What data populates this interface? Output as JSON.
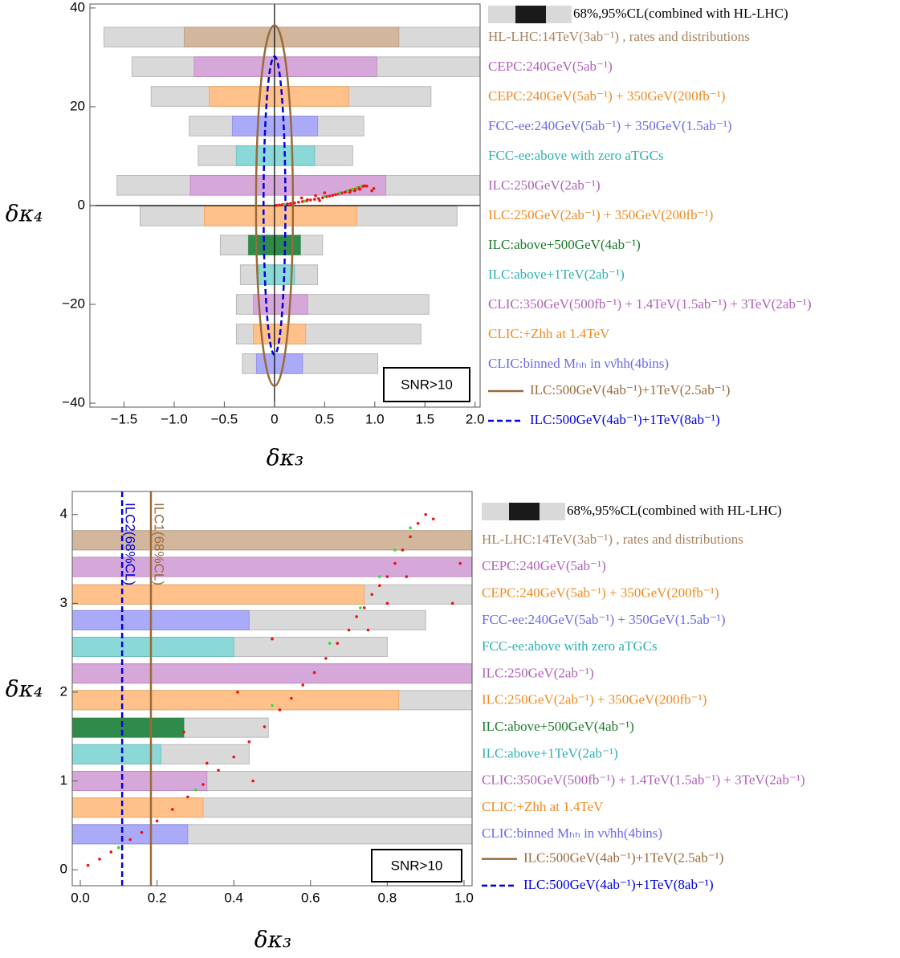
{
  "chart_data": [
    {
      "type": "interval",
      "xlabel": "δκ₃",
      "ylabel": "δκ₄",
      "annotation": "SNR>10",
      "zero_lines": true,
      "xlim": [
        -1.84,
        2.05
      ],
      "ylim": [
        -40.8,
        40.8
      ],
      "xticks": [
        {
          "value": -1.5,
          "label": "−1.5"
        },
        {
          "value": -1.0,
          "label": "−1.0"
        },
        {
          "value": -0.5,
          "label": "−0.5"
        },
        0,
        0.5,
        {
          "value": 1.0,
          "label": "1.0"
        },
        1.5,
        {
          "value": 2.0,
          "label": "2.0"
        }
      ],
      "yticks": [
        {
          "value": -40,
          "label": "−40"
        },
        {
          "value": -20,
          "label": "−20"
        },
        0,
        20,
        40
      ],
      "legend_title": "68%,95%CL(combined with HL-LHC)",
      "series": [
        {
          "name": "HL-LHC:14TeV(3ab⁻¹) , rates and distributions",
          "color": "#a8825f",
          "fill": "#d2b79c",
          "y": 34.1,
          "ci95": [
            -1.7,
            2.2
          ],
          "ci68": [
            -0.9,
            1.24
          ]
        },
        {
          "name": "CEPC:240GeV(5ab⁻¹)",
          "color": "#b060b8",
          "fill": "#d6a8da",
          "y": 28.1,
          "ci95": [
            -1.42,
            2.2
          ],
          "ci68": [
            -0.8,
            1.02
          ]
        },
        {
          "name": "CEPC:240GeV(5ab⁻¹) + 350GeV(200fb⁻¹)",
          "color": "#f08a20",
          "fill": "#ffc08a",
          "y": 22.1,
          "ci95": [
            -1.23,
            1.56
          ],
          "ci68": [
            -0.65,
            0.74
          ]
        },
        {
          "name": "FCC-ee:240GeV(5ab⁻¹) + 350GeV(1.5ab⁻¹)",
          "color": "#6a6ae8",
          "fill": "#aaaaf8",
          "y": 16.1,
          "ci95": [
            -0.85,
            0.89
          ],
          "ci68": [
            -0.42,
            0.43
          ]
        },
        {
          "name": "FCC-ee:above with zero aTGCs",
          "color": "#30b0b0",
          "fill": "#8ad8d8",
          "y": 10.1,
          "ci95": [
            -0.76,
            0.78
          ],
          "ci68": [
            -0.38,
            0.4
          ]
        },
        {
          "name": "ILC:250GeV(2ab⁻¹)",
          "color": "#b060b8",
          "fill": "#d6a8da",
          "y": 4.1,
          "ci95": [
            -1.57,
            2.2
          ],
          "ci68": [
            -0.84,
            1.11
          ]
        },
        {
          "name": "ILC:250GeV(2ab⁻¹) + 350GeV(200fb⁻¹)",
          "color": "#f08a20",
          "fill": "#ffc08a",
          "y": -2.1,
          "ci95": [
            -1.34,
            1.82
          ],
          "ci68": [
            -0.7,
            0.82
          ]
        },
        {
          "name": "ILC:above+500GeV(4ab⁻¹)",
          "color": "#1a7a2a",
          "fill": "#2e8b4a",
          "y": -8.0,
          "ci95": [
            -0.54,
            0.48
          ],
          "ci68": [
            -0.26,
            0.26
          ]
        },
        {
          "name": "ILC:above+1TeV(2ab⁻¹)",
          "color": "#30b0b0",
          "fill": "#8ad8d8",
          "y": -14.0,
          "ci95": [
            -0.34,
            0.43
          ],
          "ci68": [
            -0.16,
            0.2
          ]
        },
        {
          "name": "CLIC:350GeV(500fb⁻¹) + 1.4TeV(1.5ab⁻¹) + 3TeV(2ab⁻¹)",
          "color": "#b060b8",
          "fill": "#d6a8da",
          "y": -20.0,
          "ci95": [
            -0.38,
            1.54
          ],
          "ci68": [
            -0.21,
            0.33
          ]
        },
        {
          "name": "CLIC:+Zhh at 1.4TeV",
          "color": "#f08a20",
          "fill": "#ffc08a",
          "y": -26.0,
          "ci95": [
            -0.38,
            1.46
          ],
          "ci68": [
            -0.21,
            0.31
          ]
        },
        {
          "name": "CLIC:binned Mₕₕ in νν̄hh(4bins)",
          "color": "#6a6ae8",
          "fill": "#aaaaf8",
          "y": -32.0,
          "ci95": [
            -0.32,
            1.03
          ],
          "ci68": [
            -0.18,
            0.28
          ]
        }
      ],
      "lines": [
        {
          "name": "ILC:500GeV(4ab⁻¹)+1TeV(2.5ab⁻¹)",
          "color": "#9a6a3a",
          "dashed": false,
          "rx": 0.184,
          "ry": 36.5
        },
        {
          "name": "ILC:500GeV(4ab⁻¹)+1TeV(8ab⁻¹)",
          "color": "#0000e0",
          "dashed": true,
          "rx": 0.109,
          "ry": 30.2
        }
      ],
      "scatter": [
        {
          "color": "#ee1111",
          "x": [
            0.02,
            0.05,
            0.08,
            0.1,
            0.13,
            0.16,
            0.2,
            0.24,
            0.28,
            0.32,
            0.36,
            0.4,
            0.44,
            0.48,
            0.52,
            0.55,
            0.58,
            0.61,
            0.64,
            0.67,
            0.7,
            0.72,
            0.74,
            0.76,
            0.78,
            0.8,
            0.82,
            0.84,
            0.86,
            0.88,
            0.9,
            0.85,
            0.8,
            0.75,
            0.92,
            0.45,
            0.27,
            0.33,
            0.41,
            0.5,
            0.99,
            0.97
          ],
          "y": [
            0.05,
            0.12,
            0.2,
            0.25,
            0.34,
            0.42,
            0.55,
            0.68,
            0.82,
            0.96,
            1.12,
            1.27,
            1.44,
            1.61,
            1.8,
            1.93,
            2.08,
            2.22,
            2.38,
            2.55,
            2.7,
            2.85,
            2.95,
            3.1,
            3.2,
            3.3,
            3.45,
            3.6,
            3.75,
            3.9,
            4.0,
            3.3,
            3.0,
            2.7,
            3.95,
            1.0,
            1.55,
            1.2,
            2.0,
            2.6,
            3.45,
            3.0
          ]
        },
        {
          "color": "#33dd33",
          "x": [
            0.1,
            0.3,
            0.5,
            0.65,
            0.73,
            0.78,
            0.82,
            0.86
          ],
          "y": [
            0.25,
            0.9,
            1.85,
            2.55,
            2.95,
            3.3,
            3.6,
            3.85
          ]
        }
      ]
    },
    {
      "type": "interval",
      "xlabel": "δκ₃",
      "ylabel": "δκ₄",
      "annotation": "SNR>10",
      "zero_lines": false,
      "xlim": [
        -0.021,
        1.021
      ],
      "ylim": [
        -0.18,
        4.26
      ],
      "xticks": [
        {
          "value": 0,
          "label": "0.0"
        },
        0.2,
        0.4,
        0.6,
        0.8,
        {
          "value": 1.0,
          "label": "1.0"
        }
      ],
      "yticks": [
        0,
        1,
        2,
        3,
        4
      ],
      "legend_title": "68%,95%CL(combined with HL-LHC)",
      "series": [
        {
          "name": "HL-LHC:14TeV(3ab⁻¹) , rates and distributions",
          "color": "#a8825f",
          "fill": "#d2b79c",
          "y": 3.71,
          "ci95": [
            -1.7,
            2.2
          ],
          "ci68": [
            -0.9,
            1.24
          ]
        },
        {
          "name": "CEPC:240GeV(5ab⁻¹)",
          "color": "#b060b8",
          "fill": "#d6a8da",
          "y": 3.41,
          "ci95": [
            -1.42,
            2.2
          ],
          "ci68": [
            -0.8,
            1.02
          ]
        },
        {
          "name": "CEPC:240GeV(5ab⁻¹) + 350GeV(200fb⁻¹)",
          "color": "#f08a20",
          "fill": "#ffc08a",
          "y": 3.1,
          "ci95": [
            -1.23,
            1.56
          ],
          "ci68": [
            -0.65,
            0.74
          ]
        },
        {
          "name": "FCC-ee:240GeV(5ab⁻¹) + 350GeV(1.5ab⁻¹)",
          "color": "#6a6ae8",
          "fill": "#aaaaf8",
          "y": 2.81,
          "ci95": [
            -0.85,
            0.9
          ],
          "ci68": [
            -0.42,
            0.44
          ]
        },
        {
          "name": "FCC-ee:above with zero aTGCs",
          "color": "#30b0b0",
          "fill": "#8ad8d8",
          "y": 2.51,
          "ci95": [
            -0.76,
            0.8
          ],
          "ci68": [
            -0.38,
            0.4
          ]
        },
        {
          "name": "ILC:250GeV(2ab⁻¹)",
          "color": "#b060b8",
          "fill": "#d6a8da",
          "y": 2.21,
          "ci95": [
            -1.57,
            2.2
          ],
          "ci68": [
            -0.84,
            1.11
          ]
        },
        {
          "name": "ILC:250GeV(2ab⁻¹) + 350GeV(200fb⁻¹)",
          "color": "#f08a20",
          "fill": "#ffc08a",
          "y": 1.91,
          "ci95": [
            -1.34,
            1.82
          ],
          "ci68": [
            -0.7,
            0.83
          ]
        },
        {
          "name": "ILC:above+500GeV(4ab⁻¹)",
          "color": "#1a7a2a",
          "fill": "#2e8b4a",
          "y": 1.6,
          "ci95": [
            -0.54,
            0.49
          ],
          "ci68": [
            -0.26,
            0.27
          ]
        },
        {
          "name": "ILC:above+1TeV(2ab⁻¹)",
          "color": "#30b0b0",
          "fill": "#8ad8d8",
          "y": 1.3,
          "ci95": [
            -0.34,
            0.44
          ],
          "ci68": [
            -0.16,
            0.21
          ]
        },
        {
          "name": "CLIC:350GeV(500fb⁻¹) + 1.4TeV(1.5ab⁻¹) + 3TeV(2ab⁻¹)",
          "color": "#b060b8",
          "fill": "#d6a8da",
          "y": 1.0,
          "ci95": [
            -0.38,
            1.54
          ],
          "ci68": [
            -0.21,
            0.33
          ]
        },
        {
          "name": "CLIC:+Zhh at 1.4TeV",
          "color": "#f08a20",
          "fill": "#ffc08a",
          "y": 0.7,
          "ci95": [
            -0.38,
            1.46
          ],
          "ci68": [
            -0.21,
            0.32
          ]
        },
        {
          "name": "CLIC:binned Mₕₕ in νν̄hh(4bins)",
          "color": "#6a6ae8",
          "fill": "#aaaaf8",
          "y": 0.4,
          "ci95": [
            -0.32,
            1.03
          ],
          "ci68": [
            -0.18,
            0.28
          ]
        }
      ],
      "lines": [
        {
          "name": "ILC:500GeV(4ab⁻¹)+1TeV(2.5ab⁻¹)",
          "label": "ILC1(68%CL)",
          "color": "#9a6a3a",
          "dashed": false,
          "x": 0.184
        },
        {
          "name": "ILC:500GeV(4ab⁻¹)+1TeV(8ab⁻¹)",
          "label": "ILC2(68%CL)",
          "color": "#0000e0",
          "dashed": true,
          "x": 0.109
        }
      ],
      "scatter": [
        {
          "color": "#ee1111",
          "x": [
            0.02,
            0.05,
            0.08,
            0.1,
            0.13,
            0.16,
            0.2,
            0.24,
            0.28,
            0.32,
            0.36,
            0.4,
            0.44,
            0.48,
            0.52,
            0.55,
            0.58,
            0.61,
            0.64,
            0.67,
            0.7,
            0.72,
            0.74,
            0.76,
            0.78,
            0.8,
            0.82,
            0.84,
            0.86,
            0.88,
            0.9,
            0.85,
            0.8,
            0.75,
            0.92,
            0.45,
            0.27,
            0.33,
            0.41,
            0.5,
            0.99,
            0.97
          ],
          "y": [
            0.05,
            0.12,
            0.2,
            0.25,
            0.34,
            0.42,
            0.55,
            0.68,
            0.82,
            0.96,
            1.12,
            1.27,
            1.44,
            1.61,
            1.8,
            1.93,
            2.08,
            2.22,
            2.38,
            2.55,
            2.7,
            2.85,
            2.95,
            3.1,
            3.2,
            3.3,
            3.45,
            3.6,
            3.75,
            3.9,
            4.0,
            3.3,
            3.0,
            2.7,
            3.95,
            1.0,
            1.55,
            1.2,
            2.0,
            2.6,
            3.45,
            3.0
          ]
        },
        {
          "color": "#33dd33",
          "x": [
            0.1,
            0.3,
            0.5,
            0.65,
            0.73,
            0.78,
            0.82,
            0.86
          ],
          "y": [
            0.25,
            0.9,
            1.85,
            2.55,
            2.95,
            3.3,
            3.6,
            3.85
          ]
        }
      ]
    }
  ]
}
